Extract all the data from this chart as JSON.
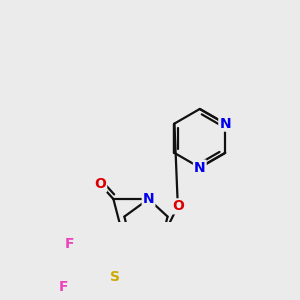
{
  "background_color": "#ebebeb",
  "atom_colors": {
    "N": "#0000ee",
    "O": "#dd0000",
    "S": "#ccaa00",
    "F": "#ee44bb",
    "C": "#111111"
  },
  "bond_color": "#111111",
  "bond_width": 1.6,
  "font_size_atoms": 10
}
